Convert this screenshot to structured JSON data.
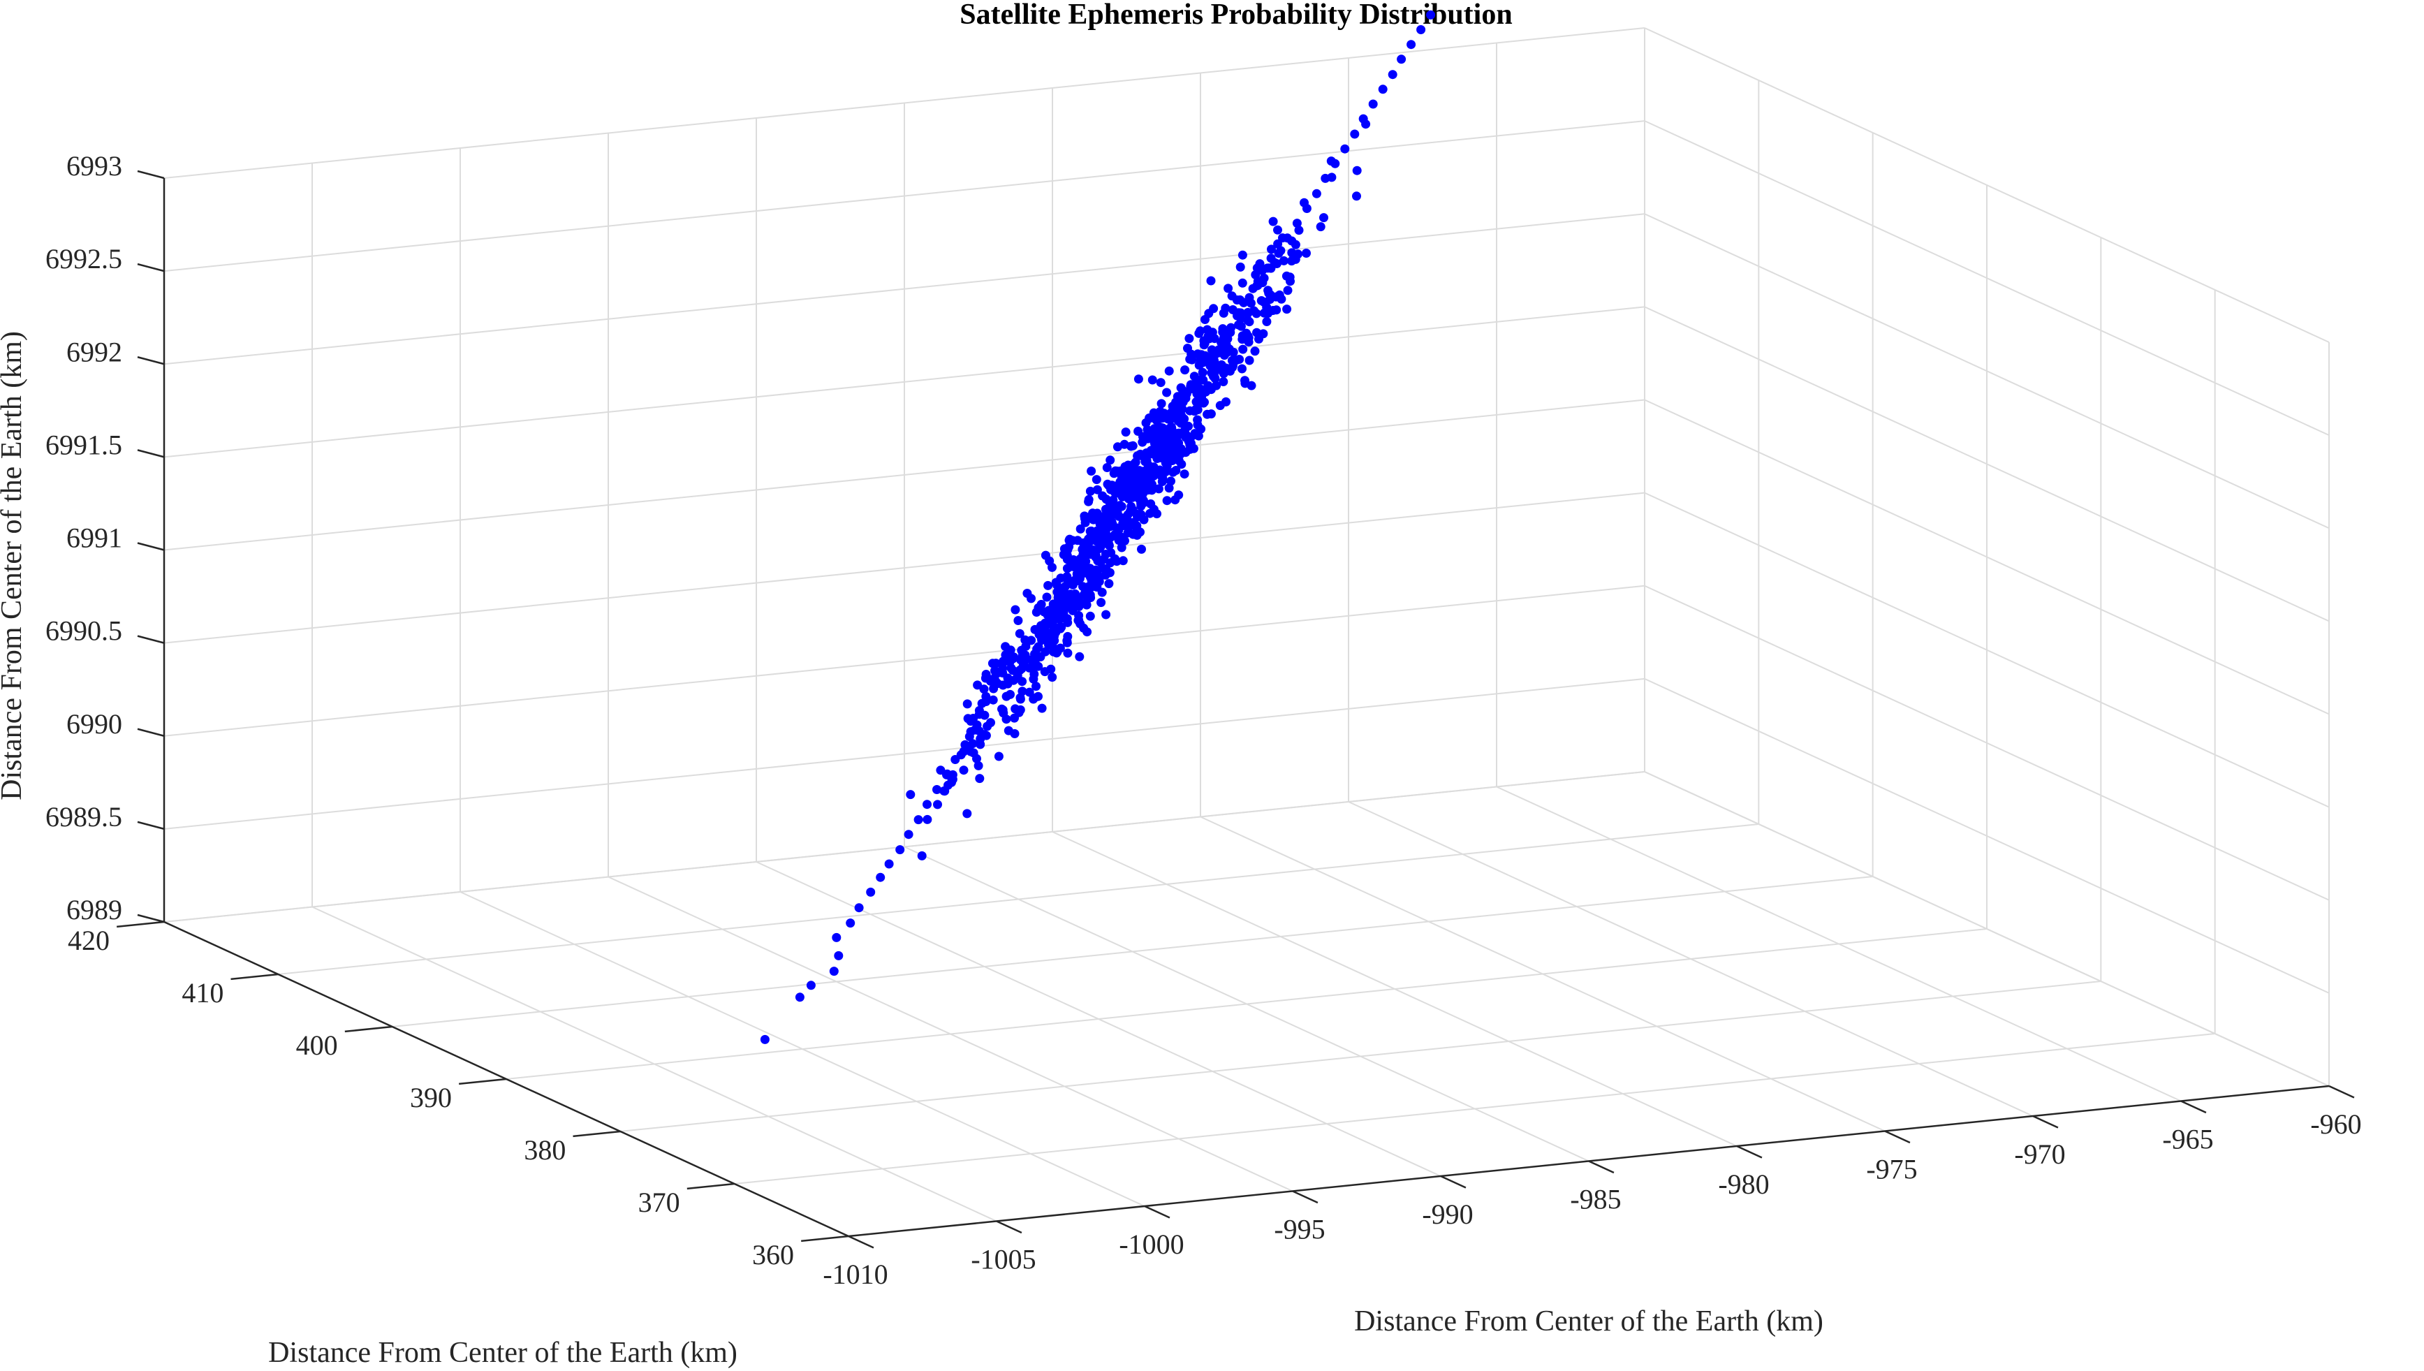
{
  "chart_data": {
    "type": "scatter3d",
    "title": "Satellite Ephemeris Probability Distribution",
    "xlabel": "Distance From Center of the Earth (km)",
    "ylabel": "Distance From Center of the Earth (km)",
    "zlabel": "Distance From Center of the Earth (km)",
    "xlim": [
      -1010,
      -960
    ],
    "ylim": [
      360,
      420
    ],
    "zlim": [
      6989,
      6993
    ],
    "xticks": [
      "-1010",
      "-1005",
      "-1000",
      "-995",
      "-990",
      "-985",
      "-980",
      "-975",
      "-970",
      "-965",
      "-960"
    ],
    "yticks": [
      "360",
      "370",
      "380",
      "390",
      "400",
      "410",
      "420"
    ],
    "zticks": [
      "6989",
      "6989.5",
      "6990",
      "6990.5",
      "6991",
      "6991.5",
      "6992",
      "6992.5",
      "6993"
    ],
    "grid": true,
    "marker_color": "#0000ff",
    "series": [
      {
        "points": [
          [
            -1009.2,
            369.4,
            6989.78
          ],
          [
            -1004.9,
            377.5,
            6989.71
          ],
          [
            -1004.1,
            378.6,
            6989.73
          ],
          [
            -1003.4,
            378.4,
            6989.8
          ],
          [
            -1002.9,
            379.3,
            6989.85
          ],
          [
            -1002.2,
            381.3,
            6989.88
          ],
          [
            -1001.5,
            381.9,
            6989.93
          ],
          [
            -1000.9,
            382.7,
            6989.98
          ],
          [
            -1000.2,
            383.5,
            6990.03
          ],
          [
            -999.6,
            384.2,
            6990.08
          ],
          [
            -999.0,
            385.0,
            6990.12
          ],
          [
            -998.4,
            385.6,
            6990.17
          ],
          [
            -997.8,
            386.4,
            6990.22
          ],
          [
            -997.2,
            387.1,
            6990.27
          ],
          [
            -996.6,
            387.9,
            6990.32
          ],
          [
            -996.0,
            388.6,
            6990.37
          ],
          [
            -995.4,
            389.3,
            6990.42
          ],
          [
            -994.8,
            390.1,
            6990.47
          ],
          [
            -994.2,
            390.8,
            6990.52
          ],
          [
            -993.6,
            391.5,
            6990.57
          ],
          [
            -993.0,
            392.2,
            6990.62
          ],
          [
            -992.4,
            393.0,
            6990.67
          ],
          [
            -991.8,
            393.7,
            6990.72
          ],
          [
            -991.2,
            394.4,
            6990.77
          ],
          [
            -990.6,
            395.1,
            6990.82
          ],
          [
            -990.0,
            395.9,
            6990.87
          ],
          [
            -989.4,
            396.6,
            6990.92
          ],
          [
            -988.8,
            397.3,
            6990.97
          ],
          [
            -988.2,
            398.0,
            6991.02
          ],
          [
            -987.6,
            398.8,
            6991.07
          ],
          [
            -987.0,
            399.5,
            6991.12
          ],
          [
            -986.4,
            400.2,
            6991.17
          ],
          [
            -985.8,
            401.0,
            6991.22
          ],
          [
            -985.2,
            401.7,
            6991.27
          ],
          [
            -984.6,
            402.4,
            6991.32
          ],
          [
            -984.0,
            403.1,
            6991.37
          ],
          [
            -983.4,
            403.9,
            6991.42
          ],
          [
            -982.8,
            404.6,
            6991.47
          ],
          [
            -982.2,
            405.3,
            6991.52
          ],
          [
            -981.6,
            406.0,
            6991.57
          ],
          [
            -981.0,
            406.8,
            6991.62
          ],
          [
            -980.4,
            407.5,
            6991.67
          ],
          [
            -979.8,
            408.2,
            6991.72
          ],
          [
            -979.2,
            408.9,
            6991.77
          ],
          [
            -978.6,
            409.7,
            6991.82
          ],
          [
            -978.0,
            410.4,
            6991.87
          ],
          [
            -977.4,
            411.1,
            6991.92
          ],
          [
            -976.8,
            411.8,
            6991.97
          ],
          [
            -976.2,
            412.6,
            6992.02
          ],
          [
            -975.6,
            413.3,
            6992.07
          ],
          [
            -975.0,
            414.0,
            6992.12
          ],
          [
            -974.4,
            414.7,
            6992.17
          ],
          [
            -973.8,
            415.5,
            6992.22
          ],
          [
            -973.2,
            416.2,
            6992.27
          ],
          [
            -972.6,
            416.9,
            6992.32
          ],
          [
            -972.0,
            417.6,
            6992.37
          ],
          [
            -971.4,
            418.4,
            6992.42
          ],
          [
            -970.8,
            419.1,
            6992.47
          ],
          [
            -970.2,
            419.8,
            6992.52
          ],
          [
            -969.6,
            420.5,
            6992.57
          ],
          [
            -969.0,
            421.3,
            6992.62
          ],
          [
            -968.4,
            422.0,
            6992.67
          ],
          [
            -967.8,
            422.7,
            6992.72
          ],
          [
            -967.2,
            423.4,
            6992.77
          ],
          [
            -966.6,
            424.2,
            6992.82
          ],
          [
            -966.0,
            424.9,
            6992.87
          ],
          [
            -965.4,
            425.6,
            6992.92
          ],
          [
            -964.8,
            426.3,
            6992.97
          ]
        ]
      }
    ]
  }
}
